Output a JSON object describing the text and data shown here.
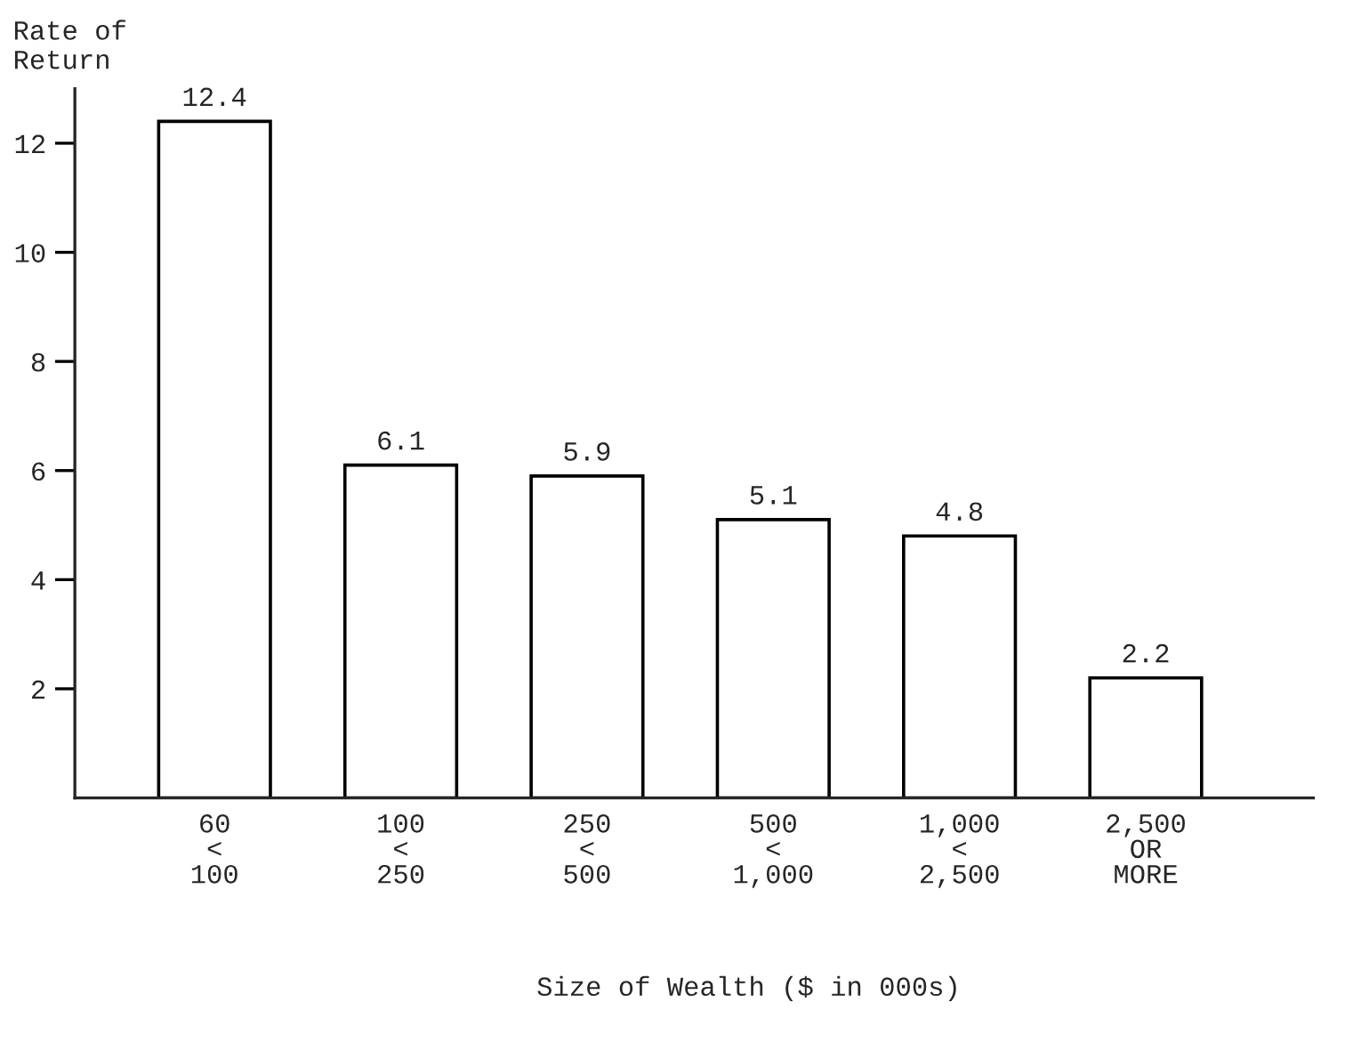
{
  "chart_data": {
    "type": "bar",
    "categories": [
      "60\n<\n100",
      "100\n<\n250",
      "250\n<\n500",
      "500\n<\n1,000",
      "1,000\n<\n2,500",
      "2,500\nOR\nMORE"
    ],
    "values": [
      12.4,
      6.1,
      5.9,
      5.1,
      4.8,
      2.2
    ],
    "color": "#ffffff",
    "data_labels": true,
    "ylabel": "Rate of\nReturn",
    "xlabel": "Size of Wealth ($ in 000s)",
    "ylim": [
      0,
      13
    ],
    "yticks": [
      2,
      4,
      6,
      8,
      10,
      12
    ],
    "grid": false,
    "legend": false
  }
}
